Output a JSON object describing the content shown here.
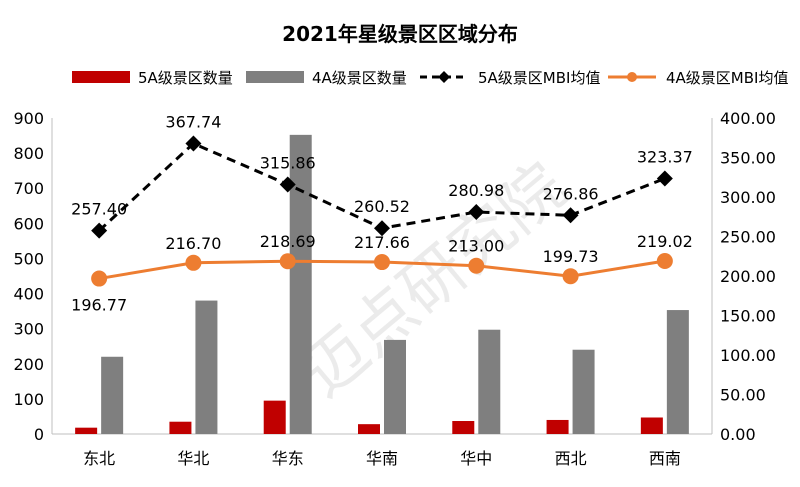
{
  "chart_data": {
    "type": "bar",
    "title": "2021年星级景区区域分布",
    "categories": [
      "东北",
      "华北",
      "华东",
      "华南",
      "华中",
      "西北",
      "西南"
    ],
    "series": [
      {
        "name": "5A级景区数量",
        "type": "bar",
        "axis": "left",
        "color": "#c00000",
        "values": [
          18,
          35,
          95,
          28,
          37,
          40,
          47
        ]
      },
      {
        "name": "4A级景区数量",
        "type": "bar",
        "axis": "left",
        "color": "#7f7f7f",
        "values": [
          220,
          380,
          852,
          268,
          297,
          240,
          353
        ]
      },
      {
        "name": "5A级景区MBI均值",
        "type": "line",
        "axis": "right",
        "color": "#000000",
        "style": "dashed",
        "marker": "diamond",
        "values": [
          257.4,
          367.74,
          315.86,
          260.52,
          280.98,
          276.86,
          323.37
        ],
        "labels": [
          "257.40",
          "367.74",
          "315.86",
          "260.52",
          "280.98",
          "276.86",
          "323.37"
        ]
      },
      {
        "name": "4A级景区MBI均值",
        "type": "line",
        "axis": "right",
        "color": "#ed7d31",
        "style": "solid",
        "marker": "circle",
        "values": [
          196.77,
          216.7,
          218.69,
          217.66,
          213.0,
          199.73,
          219.02
        ],
        "labels": [
          "196.77",
          "216.70",
          "218.69",
          "217.66",
          "213.00",
          "199.73",
          "219.02"
        ]
      }
    ],
    "y_left": {
      "min": 0,
      "max": 900,
      "step": 100,
      "ticks": [
        "0",
        "100",
        "200",
        "300",
        "400",
        "500",
        "600",
        "700",
        "800",
        "900"
      ]
    },
    "y_right": {
      "min": 0,
      "max": 400,
      "step": 50,
      "ticks": [
        "0.00",
        "50.00",
        "100.00",
        "150.00",
        "200.00",
        "250.00",
        "300.00",
        "350.00",
        "400.00"
      ]
    },
    "legend_position": "top",
    "grid": false
  },
  "watermark": "迈点研究院"
}
